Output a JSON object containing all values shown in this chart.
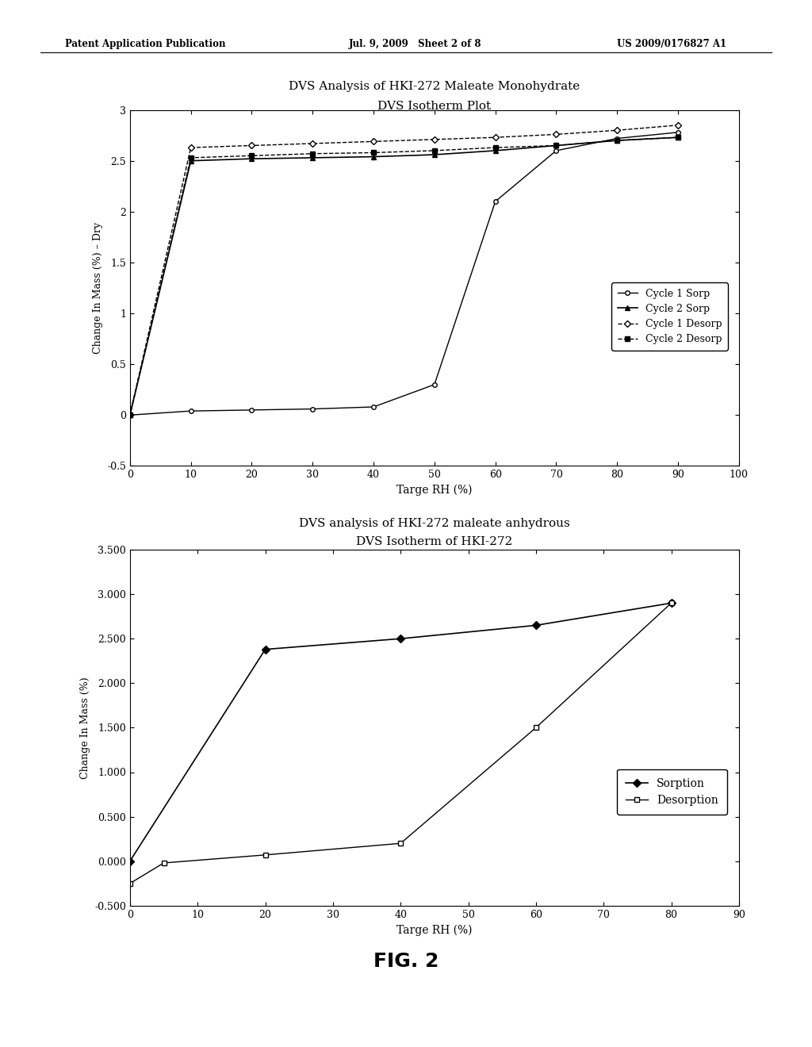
{
  "header_left": "Patent Application Publication",
  "header_mid": "Jul. 9, 2009   Sheet 2 of 8",
  "header_right": "US 2009/0176827 A1",
  "fig_label": "FIG. 2",
  "plot1": {
    "title1": "DVS Analysis of HKI-272 Maleate Monohydrate",
    "title2": "DVS Isotherm Plot",
    "xlabel": "Targe RH (%)",
    "ylabel": "Change In Mass (%) – Dry",
    "xlim": [
      0,
      100
    ],
    "ylim": [
      -0.5,
      3.0
    ],
    "yticks": [
      -0.5,
      0,
      0.5,
      1.0,
      1.5,
      2.0,
      2.5,
      3.0
    ],
    "ytick_labels": [
      "-0.5",
      "0",
      "0.5",
      "1",
      "1.5",
      "2",
      "2.5",
      "3"
    ],
    "xticks": [
      0,
      10,
      20,
      30,
      40,
      50,
      60,
      70,
      80,
      90,
      100
    ],
    "cycle1_sorp_x": [
      0,
      10,
      20,
      30,
      40,
      50,
      60,
      70,
      80,
      90
    ],
    "cycle1_sorp_y": [
      0.0,
      0.04,
      0.05,
      0.06,
      0.08,
      0.3,
      2.1,
      2.6,
      2.72,
      2.78
    ],
    "cycle2_sorp_x": [
      0,
      10,
      20,
      30,
      40,
      50,
      60,
      70,
      80,
      90
    ],
    "cycle2_sorp_y": [
      0.0,
      2.5,
      2.52,
      2.53,
      2.54,
      2.56,
      2.6,
      2.65,
      2.7,
      2.73
    ],
    "cycle1_desorp_x": [
      0,
      10,
      20,
      30,
      40,
      50,
      60,
      70,
      80,
      90
    ],
    "cycle1_desorp_y": [
      0.0,
      2.63,
      2.65,
      2.67,
      2.69,
      2.71,
      2.73,
      2.76,
      2.8,
      2.85
    ],
    "cycle2_desorp_x": [
      0,
      10,
      20,
      30,
      40,
      50,
      60,
      70,
      80,
      90
    ],
    "cycle2_desorp_y": [
      0.0,
      2.53,
      2.55,
      2.57,
      2.58,
      2.6,
      2.63,
      2.65,
      2.7,
      2.73
    ]
  },
  "plot2": {
    "title1": "DVS analysis of HKI-272 maleate anhydrous",
    "title2": "DVS Isotherm of HKI-272",
    "xlabel": "Targe RH (%)",
    "ylabel": "Change In Mass (%)",
    "xlim": [
      0,
      90
    ],
    "ylim": [
      -0.5,
      3.5
    ],
    "yticks": [
      -0.5,
      0.0,
      0.5,
      1.0,
      1.5,
      2.0,
      2.5,
      3.0,
      3.5
    ],
    "ytick_labels": [
      "-0.500",
      "0.000",
      "0.500",
      "1.000",
      "1.500",
      "2.000",
      "2.500",
      "3.000",
      "3.500"
    ],
    "xticks": [
      0,
      10,
      20,
      30,
      40,
      50,
      60,
      70,
      80,
      90
    ],
    "sorption_x": [
      0,
      20,
      40,
      60,
      80
    ],
    "sorption_y": [
      0.0,
      2.38,
      2.5,
      2.65,
      2.9
    ],
    "desorption_x": [
      0,
      5,
      20,
      40,
      60,
      80
    ],
    "desorption_y": [
      -0.25,
      -0.02,
      0.07,
      0.2,
      1.5,
      2.9
    ]
  }
}
